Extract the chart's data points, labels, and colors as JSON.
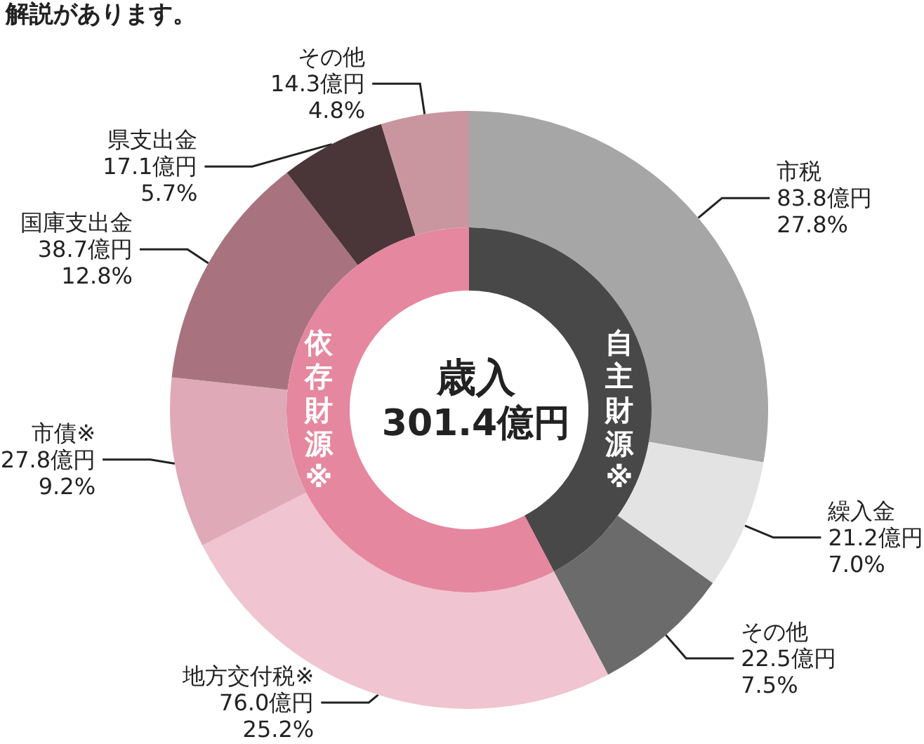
{
  "chart_data": [
    {
      "type": "donut",
      "annotations": [
        "解説があります。"
      ],
      "categories": [
        "市税",
        "繰入金",
        "その他",
        "地方交付税※",
        "市債※",
        "国庫支出金",
        "県支出金",
        "その他"
      ],
      "values": [
        83.8,
        21.2,
        22.5,
        76.0,
        27.8,
        38.7,
        17.1,
        14.3
      ],
      "value_labels": [
        "83.8億円\n27.8%",
        "21.2億円\n7.0%",
        "22.5億円\n7.5%",
        "76.0億円\n25.2%",
        "27.8億円\n9.2%",
        "38.7億円\n12.8%",
        "17.1億円\n5.7%",
        "14.3億円\n4.8%"
      ],
      "colors": [
        "#a6a6a6",
        "#e3e3e3",
        "#6b6b6b",
        "#f0c4d0",
        "#dfa9b8",
        "#a8737f",
        "#4a3538",
        "#c9969f"
      ]
    },
    {
      "type": "donut",
      "title": "歳入",
      "subtitle": "301.4億円",
      "categories": [
        "自主財源※",
        "依存財源※"
      ],
      "values": [
        42.3,
        57.7
      ],
      "colors": [
        "#484848",
        "#e5879e"
      ]
    }
  ]
}
